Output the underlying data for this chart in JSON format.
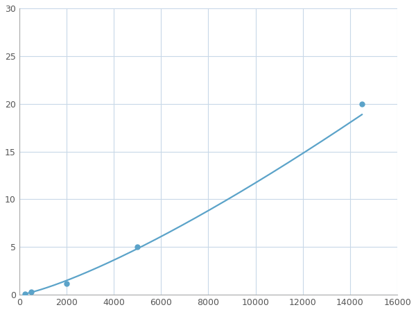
{
  "x": [
    250,
    500,
    2000,
    5000,
    14500
  ],
  "y": [
    0.1,
    0.3,
    1.2,
    5.0,
    20.0
  ],
  "line_color": "#5BA3C9",
  "marker_color": "#5BA3C9",
  "marker_size": 5,
  "line_width": 1.6,
  "xlim": [
    0,
    16000
  ],
  "ylim": [
    0,
    30
  ],
  "xticks": [
    0,
    2000,
    4000,
    6000,
    8000,
    10000,
    12000,
    14000,
    16000
  ],
  "yticks": [
    0,
    5,
    10,
    15,
    20,
    25,
    30
  ],
  "grid_color": "#C8D8E8",
  "background_color": "#FFFFFF",
  "figure_bg": "#FFFFFF"
}
